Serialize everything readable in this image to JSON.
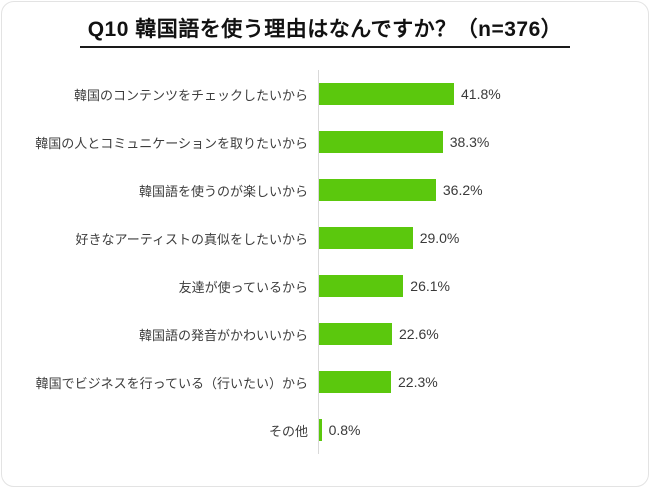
{
  "chart_data": {
    "type": "bar",
    "orientation": "horizontal",
    "title": "Q10 韓国語を使う理由はなんですか？（n=376）",
    "n_label": "n=376",
    "categories": [
      "韓国のコンテンツをチェックしたいから",
      "韓国の人とコミュニケーションを取りたいから",
      "韓国語を使うのが楽しいから",
      "好きなアーティストの真似をしたいから",
      "友達が使っているから",
      "韓国語の発音がかわいいから",
      "韓国でビジネスを行っている（行いたい）から",
      "その他"
    ],
    "values": [
      41.8,
      38.3,
      36.2,
      29.0,
      26.1,
      22.6,
      22.3,
      0.8
    ],
    "value_labels": [
      "41.8%",
      "38.3%",
      "36.2%",
      "29.0%",
      "26.1%",
      "22.6%",
      "22.3%",
      "0.8%"
    ],
    "xlabel": "",
    "ylabel": "",
    "xlim": [
      0,
      45
    ],
    "grid": false,
    "legend": false,
    "bar_color": "#5bc80d",
    "axis_line_color": "#d9d9d9",
    "title_color": "#111111",
    "label_color": "#3d3d3d"
  }
}
